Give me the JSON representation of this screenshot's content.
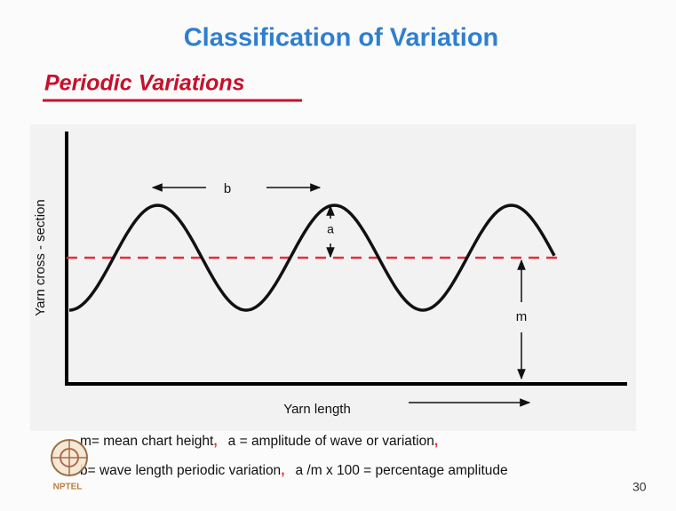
{
  "slide": {
    "title": "Classification of Variation",
    "subtitle": "Periodic Variations",
    "diagram": {
      "y_axis_label": "Yarn cross - section",
      "x_axis_label": "Yarn length",
      "wavelength_label": "b",
      "amplitude_label": "a",
      "mean_label": "m"
    },
    "definitions": [
      {
        "items": [
          "m= mean chart height",
          "a = amplitude of wave or variation"
        ],
        "separator": ","
      },
      {
        "items": [
          "b= wave length periodic variation",
          "a /m x 100 = percentage amplitude"
        ],
        "separator": ","
      }
    ],
    "logo_text": "NPTEL",
    "page_number": "30"
  }
}
